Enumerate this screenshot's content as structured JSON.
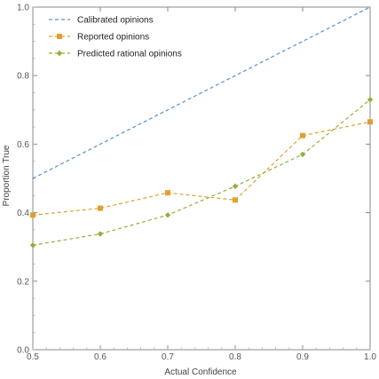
{
  "chart_data": {
    "type": "line",
    "xlabel": "Actual Confidence",
    "ylabel": "Proportion True",
    "xlim": [
      0.5,
      1.0
    ],
    "ylim": [
      0.0,
      1.0
    ],
    "x_ticks": [
      "0.5",
      "0.6",
      "0.7",
      "0.8",
      "0.9",
      "1.0"
    ],
    "y_ticks": [
      "0.0",
      "0.2",
      "0.4",
      "0.6",
      "0.8",
      "1.0"
    ],
    "grid": false,
    "legend_position": "top-left",
    "series": [
      {
        "name": "Calibrated opinions",
        "color": "#5b8fc9",
        "marker": "none",
        "x": [
          0.5,
          1.0
        ],
        "y": [
          0.5,
          1.0
        ]
      },
      {
        "name": "Reported opinions",
        "color": "#e0a030",
        "marker": "square",
        "x": [
          0.5,
          0.6,
          0.7,
          0.8,
          0.9,
          1.0
        ],
        "y": [
          0.393,
          0.413,
          0.458,
          0.437,
          0.625,
          0.665
        ]
      },
      {
        "name": "Predicted rational opinions",
        "color": "#8fb23a",
        "marker": "diamond",
        "x": [
          0.5,
          0.6,
          0.7,
          0.8,
          0.9,
          1.0
        ],
        "y": [
          0.305,
          0.338,
          0.393,
          0.477,
          0.57,
          0.73
        ]
      }
    ]
  }
}
